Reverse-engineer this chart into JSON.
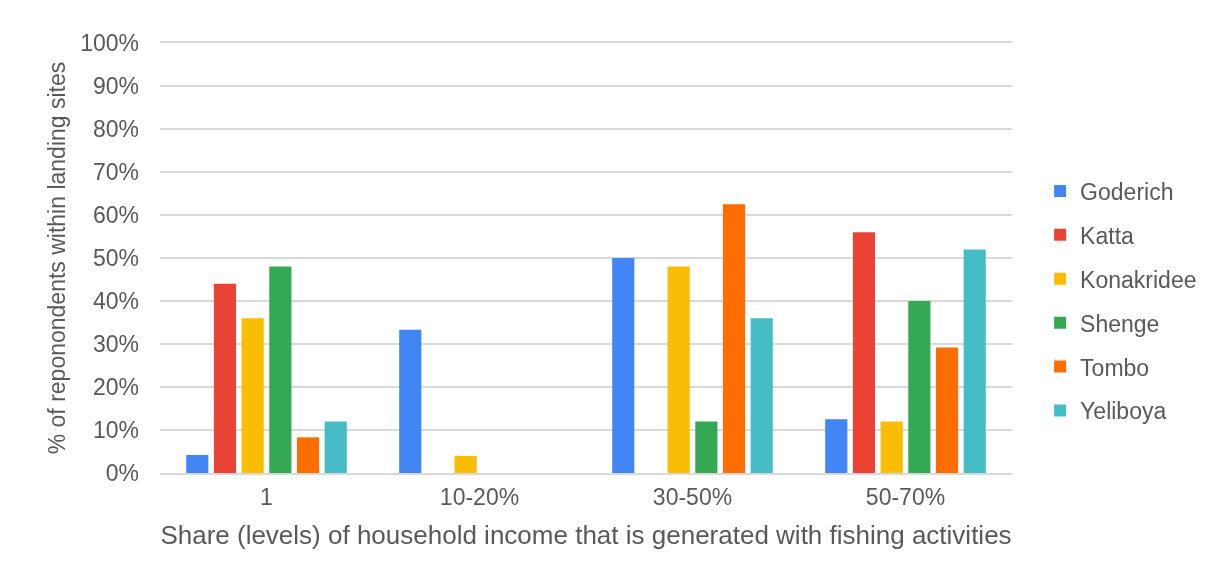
{
  "chart_data": {
    "type": "bar",
    "categories": [
      "1",
      "10-20%",
      "30-50%",
      "50-70%"
    ],
    "xlabel": "Share (levels) of household income that is generated with fishing activities",
    "ylabel": "% of reponondents within landing sites",
    "ylim": [
      0,
      100
    ],
    "yticks": [
      {
        "value": 0,
        "label": "0%"
      },
      {
        "value": 10,
        "label": "10%"
      },
      {
        "value": 20,
        "label": "20%"
      },
      {
        "value": 30,
        "label": "30%"
      },
      {
        "value": 40,
        "label": "40%"
      },
      {
        "value": 50,
        "label": "50%"
      },
      {
        "value": 60,
        "label": "60%"
      },
      {
        "value": 70,
        "label": "70%"
      },
      {
        "value": 80,
        "label": "80%"
      },
      {
        "value": 90,
        "label": "90%"
      },
      {
        "value": 100,
        "label": "100%"
      }
    ],
    "grid": "y",
    "legend": "right",
    "series": [
      {
        "name": "Goderich",
        "color": "#4285f4",
        "values": [
          4.2,
          33.3,
          50,
          12.5
        ]
      },
      {
        "name": "Katta",
        "color": "#ea4335",
        "values": [
          44,
          0,
          0,
          56
        ]
      },
      {
        "name": "Konakridee",
        "color": "#fbbc04",
        "values": [
          36,
          4,
          48,
          12
        ]
      },
      {
        "name": "Shenge",
        "color": "#34a853",
        "values": [
          48,
          0,
          12,
          40
        ]
      },
      {
        "name": "Tombo",
        "color": "#ff6d01",
        "values": [
          8.3,
          0,
          62.5,
          29.2
        ]
      },
      {
        "name": "Yeliboya",
        "color": "#46bdc6",
        "values": [
          12,
          0,
          36,
          52
        ]
      }
    ]
  }
}
